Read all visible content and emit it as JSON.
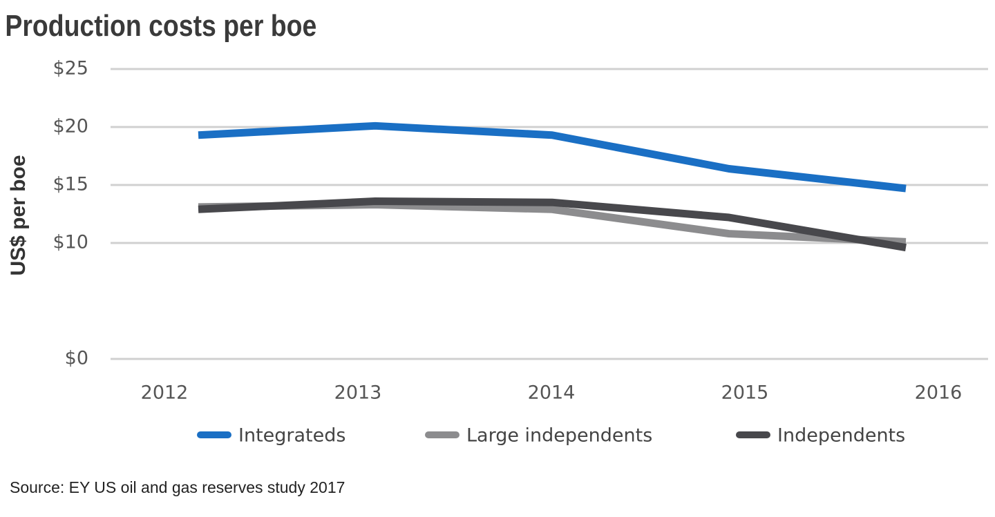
{
  "chart_data": {
    "type": "line",
    "title": "Production costs per boe",
    "y_label": "US$ per boe",
    "source": "Source: EY US oil and gas reserves study 2017",
    "categories": [
      "2012",
      "2013",
      "2014",
      "2015",
      "2016"
    ],
    "series": [
      {
        "name": "Integrateds",
        "color": "#1a6fc4",
        "values": [
          19.3,
          20.1,
          19.3,
          16.4,
          14.7
        ]
      },
      {
        "name": "Large independents",
        "color": "#8c8c8e",
        "values": [
          13.1,
          13.3,
          12.9,
          10.8,
          10.1
        ]
      },
      {
        "name": "Independents",
        "color": "#48484c",
        "values": [
          12.9,
          13.6,
          13.5,
          12.2,
          9.6
        ]
      }
    ],
    "ylim": [
      0,
      25
    ],
    "yticks": [
      {
        "value": 0,
        "label": "$0"
      },
      {
        "value": 10,
        "label": "$10"
      },
      {
        "value": 15,
        "label": "$15"
      },
      {
        "value": 20,
        "label": "$20"
      },
      {
        "value": 25,
        "label": "$25"
      }
    ],
    "grid": true
  }
}
